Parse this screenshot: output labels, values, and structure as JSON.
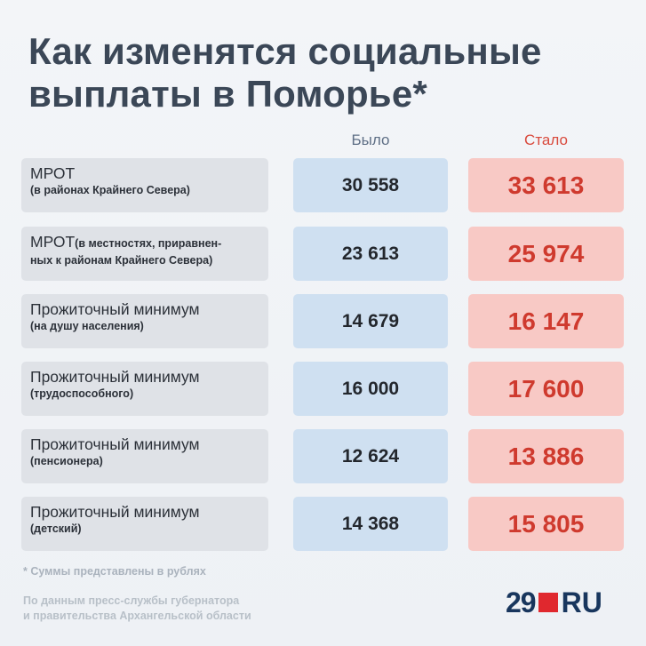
{
  "title": {
    "line1": "Как изменятся социальные",
    "line2": "выплаты в Поморье*"
  },
  "columns": {
    "was": "Было",
    "now": "Стало"
  },
  "rows": [
    {
      "main": "МРОТ",
      "sub": "(в районах Крайнего Севера)",
      "was": "30 558",
      "now": "33 613"
    },
    {
      "main": "МРОТ",
      "inline": "(в местностях, приравнен-",
      "sub": "ных к районам Крайнего Севера)",
      "was": "23 613",
      "now": "25 974"
    },
    {
      "main": "Прожиточный минимум",
      "sub": "(на душу населения)",
      "was": "14 679",
      "now": "16 147"
    },
    {
      "main": "Прожиточный минимум",
      "sub": "(трудоспособного)",
      "was": "16 000",
      "now": "17 600"
    },
    {
      "main": "Прожиточный минимум",
      "sub": "(пенсионера)",
      "was": "12 624",
      "now": "13 886"
    },
    {
      "main": "Прожиточный минимум",
      "sub": "(детский)",
      "was": "14 368",
      "now": "15 805"
    }
  ],
  "note": "* Суммы представлены в рублях",
  "source": {
    "line1": "По данным пресс-службы губернатора",
    "line2": "и правительства Архангельской области"
  },
  "logo": {
    "num": "29",
    "ru": "RU",
    "accent": "#e0282e",
    "brand": "#18365d"
  }
}
